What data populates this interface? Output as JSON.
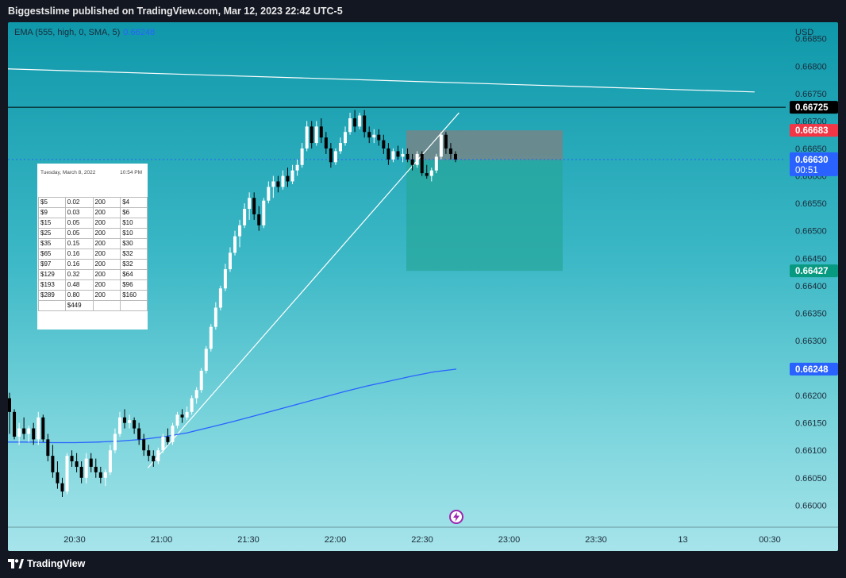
{
  "header": {
    "title": "Biggestslime published on TradingView.com, Mar 12, 2023 22:42 UTC-5"
  },
  "footer": {
    "brand": "TradingView"
  },
  "indicator": {
    "label": "EMA (555, high, 0, SMA, 5)",
    "value": "0.66248"
  },
  "colors": {
    "bull": "#ffffff",
    "bear": "#000000",
    "ema": "#2962ff",
    "stop_zone": "#808080",
    "target_zone": "#26a69a",
    "stop_tag": "#f23645",
    "target_tag": "#089981",
    "ema_tag": "#2962ff",
    "price_tag": "#2962ff",
    "black_tag": "#000000",
    "gray_tag": "#787b86"
  },
  "chart_data": {
    "type": "candlestick",
    "currency": "USD",
    "x_ticks": [
      "20:30",
      "21:00",
      "21:30",
      "22:00",
      "22:30",
      "23:00",
      "23:30",
      "13",
      "00:30"
    ],
    "y_ticks": [
      "0.66850",
      "0.66800",
      "0.66750",
      "0.66700",
      "0.66650",
      "0.66600",
      "0.66550",
      "0.66500",
      "0.66450",
      "0.66400",
      "0.66350",
      "0.66300",
      "0.66200",
      "0.66150",
      "0.66100",
      "0.66050",
      "0.66000"
    ],
    "ylim": [
      0.6596,
      0.6688
    ],
    "price_tags": [
      {
        "label": "0.66725",
        "value": 0.66725,
        "color_key": "black_tag"
      },
      {
        "label": "0.66683",
        "value": 0.66683,
        "color_key": "stop_tag"
      },
      {
        "label": "0.66629",
        "value": 0.66629,
        "color_key": "gray_tag"
      },
      {
        "label": "0.66427",
        "value": 0.66427,
        "color_key": "target_tag"
      },
      {
        "label": "0.66248",
        "value": 0.66248,
        "color_key": "ema_tag"
      }
    ],
    "current_price": {
      "price": "0.66630",
      "countdown": "00:51",
      "value": 0.6663
    },
    "candles": [
      [
        0.66195,
        0.66205,
        0.6613,
        0.6617
      ],
      [
        0.6617,
        0.66175,
        0.6612,
        0.66125
      ],
      [
        0.66125,
        0.6615,
        0.6611,
        0.6614
      ],
      [
        0.6614,
        0.6616,
        0.6612,
        0.6613
      ],
      [
        0.6613,
        0.66145,
        0.66115,
        0.6614
      ],
      [
        0.6614,
        0.6615,
        0.6611,
        0.6612
      ],
      [
        0.6612,
        0.6617,
        0.6611,
        0.6616
      ],
      [
        0.6616,
        0.66165,
        0.66115,
        0.6612
      ],
      [
        0.6612,
        0.6613,
        0.6608,
        0.6609
      ],
      [
        0.6609,
        0.6611,
        0.6605,
        0.6606
      ],
      [
        0.6606,
        0.6608,
        0.6603,
        0.6604
      ],
      [
        0.6604,
        0.6605,
        0.66015,
        0.66025
      ],
      [
        0.66025,
        0.66095,
        0.6602,
        0.6609
      ],
      [
        0.6609,
        0.661,
        0.6607,
        0.6608
      ],
      [
        0.6608,
        0.66095,
        0.6606,
        0.6607
      ],
      [
        0.6607,
        0.6608,
        0.6604,
        0.6605
      ],
      [
        0.6605,
        0.66095,
        0.6604,
        0.66085
      ],
      [
        0.66085,
        0.66095,
        0.6606,
        0.6607
      ],
      [
        0.6607,
        0.66085,
        0.6605,
        0.6606
      ],
      [
        0.6606,
        0.6607,
        0.6604,
        0.6605
      ],
      [
        0.6605,
        0.66065,
        0.66035,
        0.6606
      ],
      [
        0.6606,
        0.6611,
        0.66055,
        0.661
      ],
      [
        0.661,
        0.6614,
        0.66095,
        0.6613
      ],
      [
        0.6613,
        0.6617,
        0.66125,
        0.6616
      ],
      [
        0.6616,
        0.66175,
        0.6614,
        0.6615
      ],
      [
        0.6615,
        0.66165,
        0.6614,
        0.66155
      ],
      [
        0.66155,
        0.6616,
        0.6613,
        0.6614
      ],
      [
        0.6614,
        0.6615,
        0.6611,
        0.6612
      ],
      [
        0.6612,
        0.6613,
        0.6609,
        0.661
      ],
      [
        0.661,
        0.6611,
        0.6608,
        0.6609
      ],
      [
        0.6609,
        0.661,
        0.6607,
        0.6608
      ],
      [
        0.6608,
        0.66105,
        0.66075,
        0.661
      ],
      [
        0.661,
        0.6613,
        0.66095,
        0.66125
      ],
      [
        0.66125,
        0.6614,
        0.6611,
        0.66115
      ],
      [
        0.66115,
        0.6615,
        0.6611,
        0.66145
      ],
      [
        0.66145,
        0.6617,
        0.6614,
        0.66165
      ],
      [
        0.66165,
        0.66175,
        0.6615,
        0.6616
      ],
      [
        0.6616,
        0.6618,
        0.66155,
        0.6617
      ],
      [
        0.6617,
        0.662,
        0.66165,
        0.66195
      ],
      [
        0.66195,
        0.66215,
        0.66185,
        0.6621
      ],
      [
        0.6621,
        0.6625,
        0.66205,
        0.66245
      ],
      [
        0.66245,
        0.6629,
        0.6624,
        0.66285
      ],
      [
        0.66285,
        0.6633,
        0.6628,
        0.66325
      ],
      [
        0.66325,
        0.6637,
        0.6632,
        0.6636
      ],
      [
        0.6636,
        0.664,
        0.66355,
        0.66395
      ],
      [
        0.66395,
        0.6644,
        0.6639,
        0.6643
      ],
      [
        0.6643,
        0.6647,
        0.66425,
        0.6646
      ],
      [
        0.6646,
        0.665,
        0.66455,
        0.6649
      ],
      [
        0.6649,
        0.6652,
        0.6647,
        0.6651
      ],
      [
        0.6651,
        0.6655,
        0.66505,
        0.6654
      ],
      [
        0.6654,
        0.6657,
        0.6652,
        0.6656
      ],
      [
        0.6656,
        0.6657,
        0.6652,
        0.6653
      ],
      [
        0.6653,
        0.66545,
        0.665,
        0.6651
      ],
      [
        0.6651,
        0.6656,
        0.66505,
        0.66555
      ],
      [
        0.66555,
        0.6659,
        0.6655,
        0.6658
      ],
      [
        0.6658,
        0.666,
        0.6656,
        0.6659
      ],
      [
        0.6659,
        0.666,
        0.6657,
        0.6658
      ],
      [
        0.6658,
        0.6661,
        0.66575,
        0.666
      ],
      [
        0.666,
        0.66615,
        0.6658,
        0.6659
      ],
      [
        0.6659,
        0.6662,
        0.66585,
        0.6661
      ],
      [
        0.6661,
        0.6663,
        0.666,
        0.6662
      ],
      [
        0.6662,
        0.6666,
        0.66615,
        0.6665
      ],
      [
        0.6665,
        0.667,
        0.66645,
        0.6669
      ],
      [
        0.6669,
        0.667,
        0.6665,
        0.6666
      ],
      [
        0.6666,
        0.667,
        0.66655,
        0.6669
      ],
      [
        0.6669,
        0.66705,
        0.6666,
        0.6667
      ],
      [
        0.6667,
        0.6668,
        0.6664,
        0.6665
      ],
      [
        0.6665,
        0.6666,
        0.66615,
        0.66625
      ],
      [
        0.66625,
        0.6665,
        0.6662,
        0.66645
      ],
      [
        0.66645,
        0.6667,
        0.6664,
        0.6666
      ],
      [
        0.6666,
        0.6669,
        0.66655,
        0.6668
      ],
      [
        0.6668,
        0.66715,
        0.66675,
        0.66705
      ],
      [
        0.66705,
        0.6672,
        0.6668,
        0.6669
      ],
      [
        0.6669,
        0.66715,
        0.66685,
        0.6671
      ],
      [
        0.6671,
        0.6672,
        0.6667,
        0.6668
      ],
      [
        0.6668,
        0.6669,
        0.6666,
        0.6667
      ],
      [
        0.6667,
        0.66685,
        0.6666,
        0.66675
      ],
      [
        0.66675,
        0.66685,
        0.66655,
        0.66665
      ],
      [
        0.66665,
        0.66675,
        0.6664,
        0.6665
      ],
      [
        0.6665,
        0.6666,
        0.6662,
        0.6663
      ],
      [
        0.6663,
        0.6665,
        0.66625,
        0.66645
      ],
      [
        0.66645,
        0.66655,
        0.6663,
        0.66635
      ],
      [
        0.66635,
        0.6665,
        0.66625,
        0.6664
      ],
      [
        0.6664,
        0.6665,
        0.66625,
        0.6663
      ],
      [
        0.6663,
        0.6664,
        0.6661,
        0.6662
      ],
      [
        0.6662,
        0.66645,
        0.66615,
        0.6664
      ],
      [
        0.6664,
        0.66645,
        0.666,
        0.66605
      ],
      [
        0.66605,
        0.6662,
        0.66595,
        0.666
      ],
      [
        0.666,
        0.66615,
        0.6659,
        0.6661
      ],
      [
        0.6661,
        0.6664,
        0.66605,
        0.66635
      ],
      [
        0.66635,
        0.6668,
        0.6663,
        0.66675
      ],
      [
        0.66675,
        0.6668,
        0.6664,
        0.6665
      ],
      [
        0.6665,
        0.6666,
        0.6663,
        0.6664
      ],
      [
        0.6664,
        0.66645,
        0.66625,
        0.6663
      ]
    ],
    "ema": [
      0.66115,
      0.66115,
      0.66114,
      0.66114,
      0.66115,
      0.66117,
      0.6612,
      0.66125,
      0.66132,
      0.66142,
      0.66152,
      0.66163,
      0.66174,
      0.66185,
      0.66196,
      0.66207,
      0.66217,
      0.66226,
      0.66235,
      0.66243,
      0.66248
    ],
    "trend_lines": [
      {
        "from": [
          0.0,
          0.66795
        ],
        "to": [
          0.96,
          0.66753
        ],
        "color": "#ffffff"
      },
      {
        "from": [
          0.18,
          0.66068
        ],
        "to": [
          0.58,
          0.66715
        ],
        "color": "#ffffff"
      }
    ],
    "position_tool": {
      "entry": 0.66629,
      "stop": 0.66683,
      "target": 0.66427
    }
  },
  "table": {
    "date": "Tuesday, March 8, 2022",
    "time": "10:54 PM",
    "rows": [
      [
        "$5",
        "0.02",
        "200",
        "$4"
      ],
      [
        "$9",
        "0.03",
        "200",
        "$6"
      ],
      [
        "$15",
        "0.05",
        "200",
        "$10"
      ],
      [
        "$25",
        "0.05",
        "200",
        "$10"
      ],
      [
        "$35",
        "0.15",
        "200",
        "$30"
      ],
      [
        "$65",
        "0.16",
        "200",
        "$32"
      ],
      [
        "$97",
        "0.16",
        "200",
        "$32"
      ],
      [
        "$129",
        "0.32",
        "200",
        "$64"
      ],
      [
        "$193",
        "0.48",
        "200",
        "$96"
      ],
      [
        "$289",
        "0.80",
        "200",
        "$160"
      ],
      [
        "",
        "$449",
        "",
        ""
      ]
    ]
  }
}
